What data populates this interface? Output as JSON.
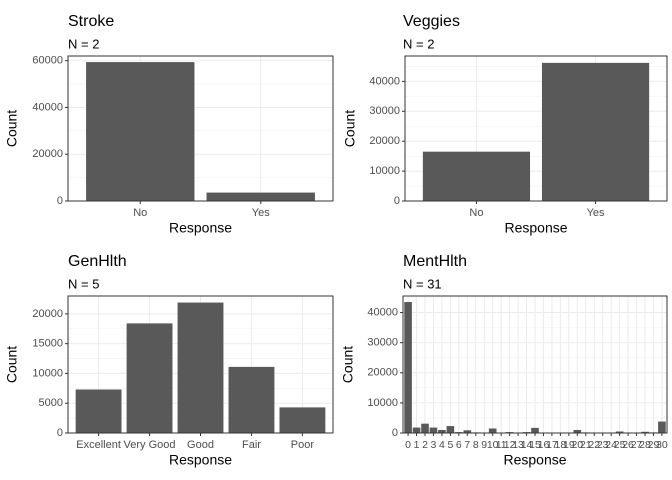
{
  "chart_data": [
    {
      "type": "bar",
      "title": "Stroke",
      "subtitle": "N = 2",
      "xlabel": "Response",
      "ylabel": "Count",
      "categories": [
        "No",
        "Yes"
      ],
      "values": [
        59400,
        3600
      ],
      "ylim": [
        0,
        62000
      ],
      "yticks": [
        0,
        20000,
        40000,
        60000
      ],
      "bar_color": "#595959",
      "grid": true
    },
    {
      "type": "bar",
      "title": "Veggies",
      "subtitle": "N = 2",
      "xlabel": "Response",
      "ylabel": "Count",
      "categories": [
        "No",
        "Yes"
      ],
      "values": [
        16500,
        46200
      ],
      "ylim": [
        0,
        48500
      ],
      "yticks": [
        0,
        10000,
        20000,
        30000,
        40000
      ],
      "bar_color": "#595959",
      "grid": true
    },
    {
      "type": "bar",
      "title": "GenHlth",
      "subtitle": "N = 5",
      "xlabel": "Response",
      "ylabel": "Count",
      "categories": [
        "Excellent",
        "Very Good",
        "Good",
        "Fair",
        "Poor"
      ],
      "values": [
        7300,
        18400,
        21900,
        11100,
        4300
      ],
      "ylim": [
        0,
        23000
      ],
      "yticks": [
        0,
        5000,
        10000,
        15000,
        20000
      ],
      "bar_color": "#595959",
      "grid": true
    },
    {
      "type": "bar",
      "title": "MentHlth",
      "subtitle": "N = 31",
      "xlabel": "Response",
      "ylabel": "Count",
      "categories": [
        "0",
        "1",
        "2",
        "3",
        "4",
        "5",
        "6",
        "7",
        "8",
        "9",
        "10",
        "11",
        "12",
        "13",
        "14",
        "15",
        "16",
        "17",
        "18",
        "19",
        "20",
        "21",
        "22",
        "23",
        "24",
        "25",
        "26",
        "27",
        "28",
        "29",
        "30"
      ],
      "values": [
        43500,
        1800,
        3100,
        1800,
        1000,
        2300,
        300,
        900,
        200,
        100,
        1500,
        50,
        300,
        50,
        300,
        1700,
        50,
        50,
        50,
        50,
        1000,
        200,
        50,
        50,
        50,
        500,
        50,
        100,
        400,
        200,
        3800
      ],
      "ylim": [
        0,
        45500
      ],
      "yticks": [
        0,
        10000,
        20000,
        30000,
        40000
      ],
      "bar_color": "#595959",
      "grid": true
    }
  ]
}
